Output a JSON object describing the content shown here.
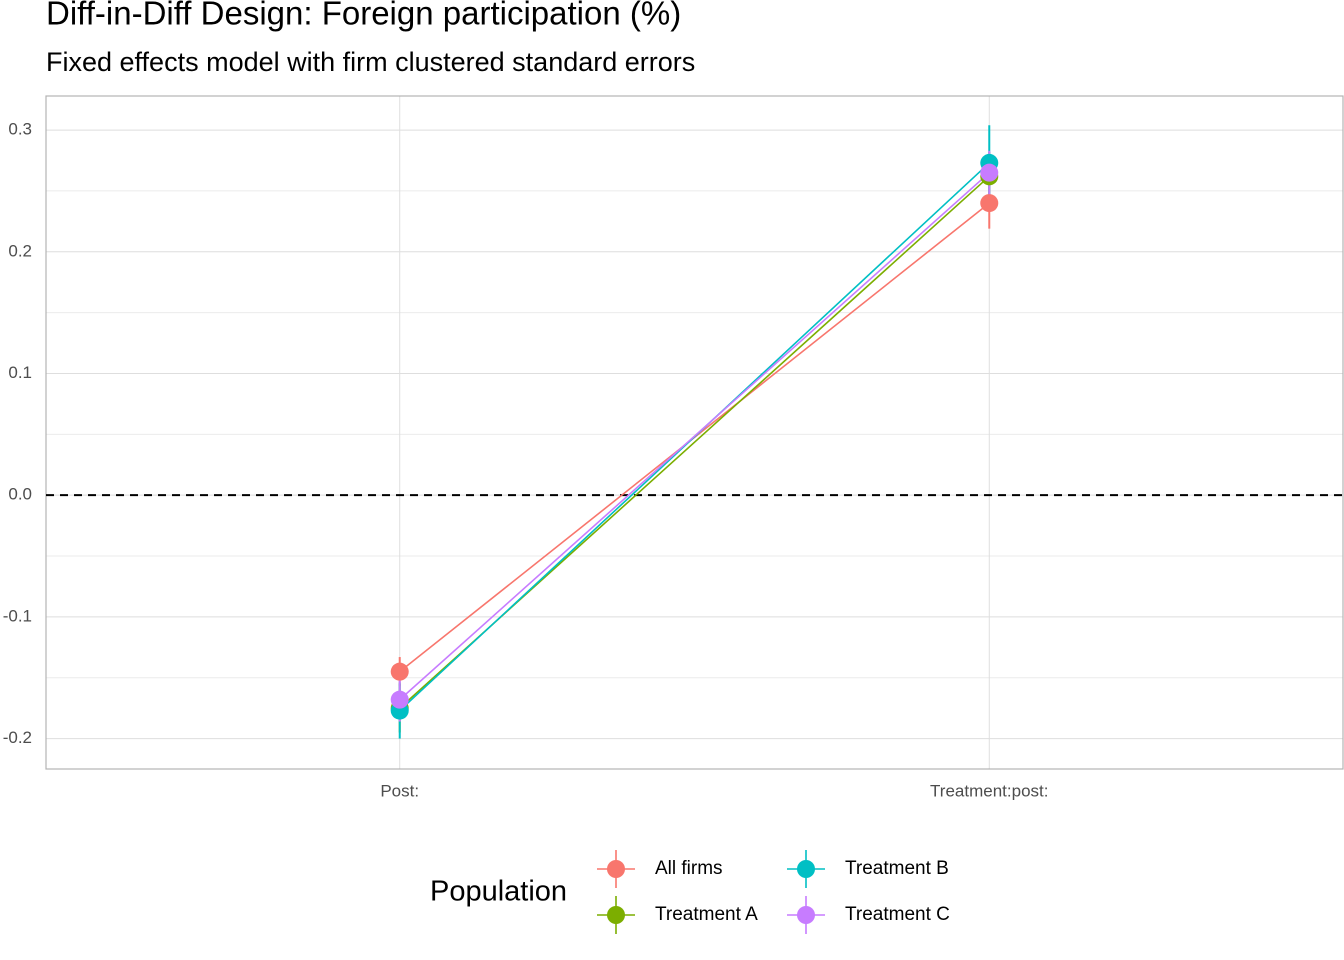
{
  "chart_data": {
    "type": "line",
    "title": "Diff-in-Diff Design: Foreign participation (%)",
    "subtitle": "Fixed effects model with firm clustered standard errors",
    "categories": [
      "Post:",
      "Treatment:post:"
    ],
    "series": [
      {
        "name": "All firms",
        "color": "#F8766D",
        "values": [
          -0.145,
          0.24
        ],
        "errors": [
          0.012,
          0.021
        ]
      },
      {
        "name": "Treatment A",
        "color": "#7CAE00",
        "values": [
          -0.175,
          0.262
        ],
        "errors": [
          0.02,
          0.02
        ]
      },
      {
        "name": "Treatment B",
        "color": "#00BFC4",
        "values": [
          -0.177,
          0.273
        ],
        "errors": [
          0.023,
          0.031
        ]
      },
      {
        "name": "Treatment C",
        "color": "#C77CFF",
        "values": [
          -0.168,
          0.265
        ],
        "errors": [
          0.018,
          0.018
        ]
      }
    ],
    "ylim": [
      -0.225,
      0.328
    ],
    "yticks": [
      -0.2,
      -0.1,
      {
        "value": 0,
        "label": "0.0"
      },
      0.1,
      0.2,
      0.3
    ],
    "reference_line": 0,
    "grid": true,
    "legend_title": "Population",
    "legend_position": "bottom"
  }
}
